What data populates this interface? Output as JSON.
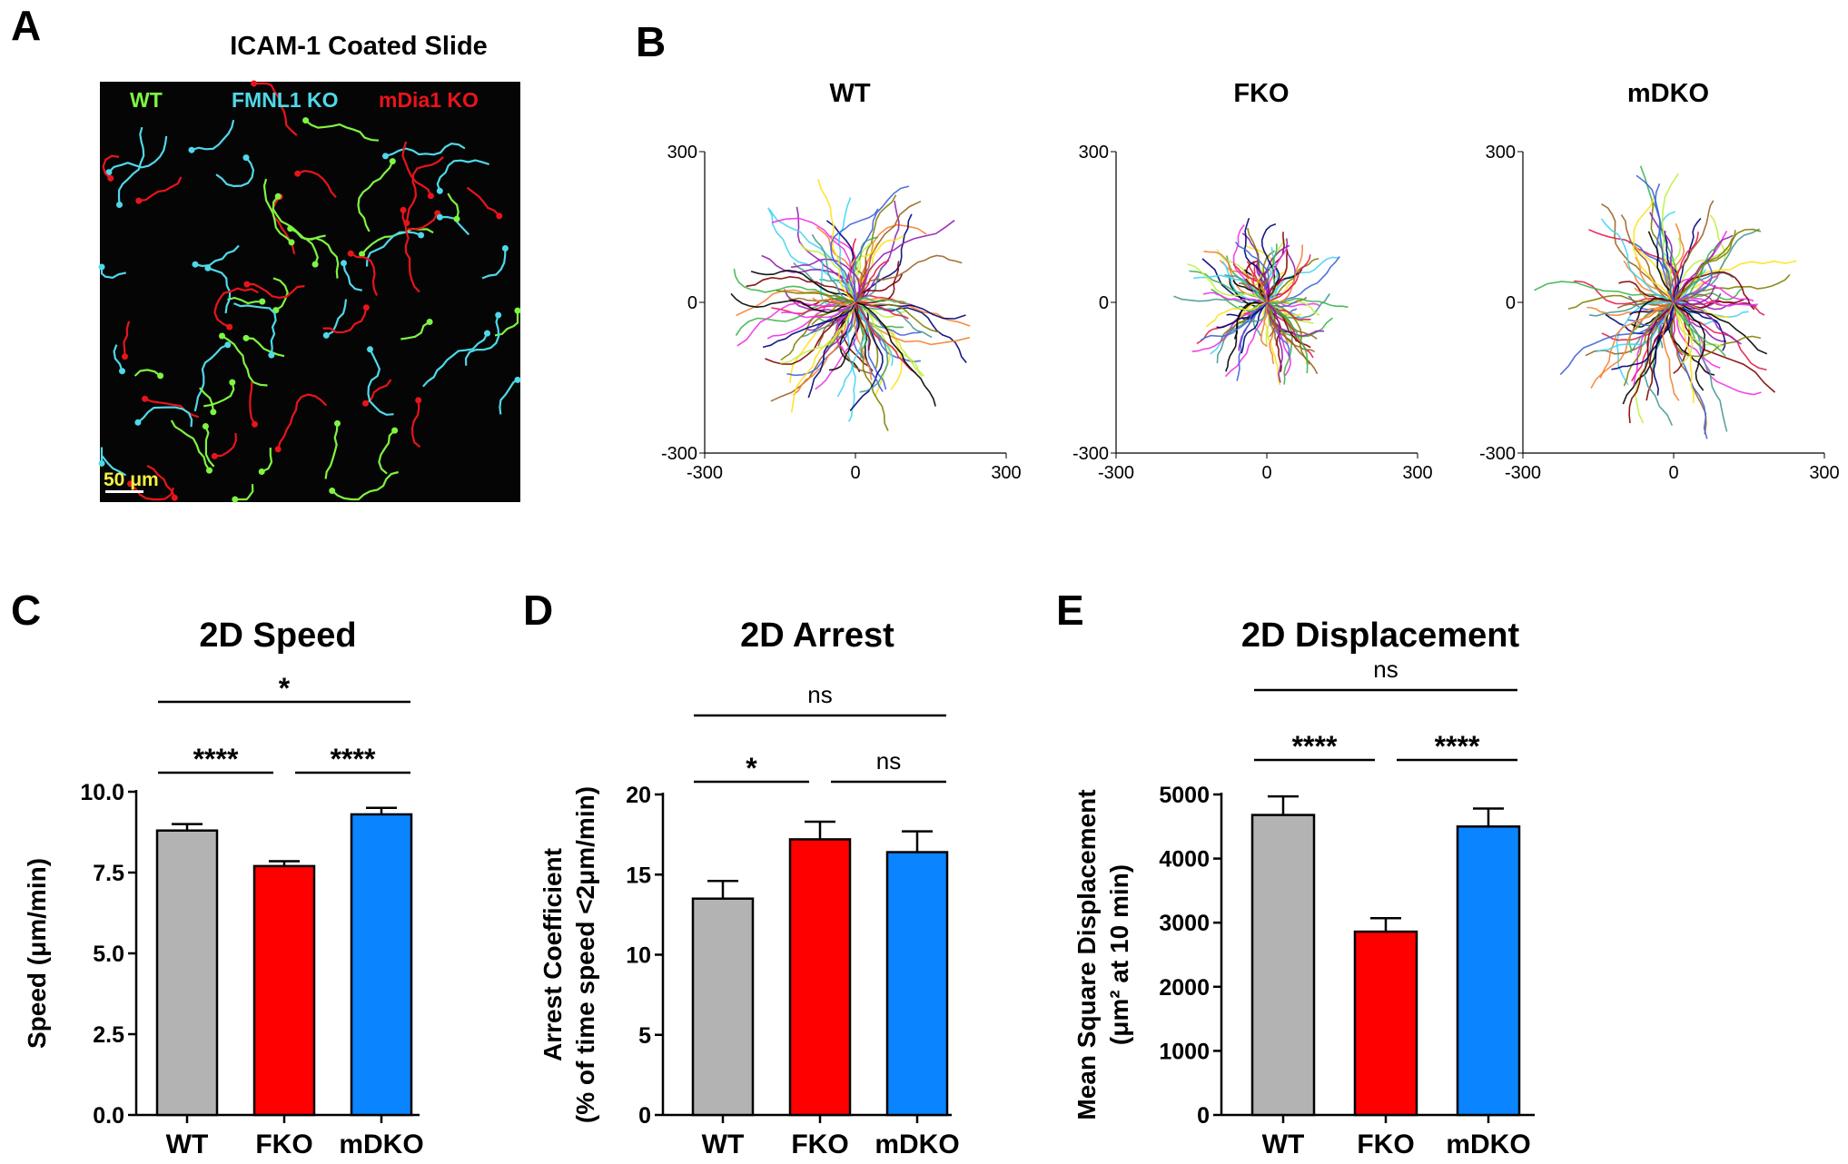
{
  "figure": {
    "panel_a": {
      "letter": "A",
      "title": "ICAM-1 Coated Slide",
      "legend": [
        {
          "label": "WT",
          "color": "#7ef542"
        },
        {
          "label": "FMNL1 KO",
          "color": "#4fd8e8"
        },
        {
          "label": "mDia1 KO",
          "color": "#e8141a"
        }
      ],
      "scale_bar_label": "50 μm"
    },
    "panel_b": {
      "letter": "B"
    }
  },
  "chart_data": [
    {
      "id": "B",
      "type": "line",
      "description": "cell track rose plots",
      "plots": [
        {
          "title": "WT"
        },
        {
          "title": "FKO"
        },
        {
          "title": "mDKO"
        }
      ],
      "xlim": [
        -300,
        300
      ],
      "ylim": [
        -300,
        300
      ],
      "xticks": [
        "-300",
        "0",
        "300"
      ],
      "yticks": [
        "300",
        "0",
        "-300"
      ]
    },
    {
      "id": "C",
      "letter": "C",
      "type": "bar",
      "title": "2D Speed",
      "ylabel": [
        "Speed (μm/min)"
      ],
      "categories": [
        "WT",
        "FKO",
        "mDKO"
      ],
      "values": [
        8.8,
        7.7,
        9.3
      ],
      "errors": [
        0.2,
        0.15,
        0.2
      ],
      "colors": [
        "#b3b3b3",
        "#ff0000",
        "#0a84ff"
      ],
      "ylim": [
        0,
        10
      ],
      "yticks": [
        0,
        2.5,
        5,
        7.5,
        10
      ],
      "ytick_labels": [
        "0.0",
        "2.5",
        "5.0",
        "7.5",
        "10.0"
      ],
      "comparisons": [
        {
          "from": 0,
          "to": 1,
          "label": "****",
          "level": 0
        },
        {
          "from": 1,
          "to": 2,
          "label": "****",
          "level": 0
        },
        {
          "from": 0,
          "to": 2,
          "label": "*",
          "level": 1
        }
      ]
    },
    {
      "id": "D",
      "letter": "D",
      "type": "bar",
      "title": "2D Arrest",
      "ylabel": [
        "Arrest Coefficient",
        "(% of time speed <2μm/min)"
      ],
      "categories": [
        "WT",
        "FKO",
        "mDKO"
      ],
      "values": [
        13.5,
        17.2,
        16.4
      ],
      "errors": [
        1.1,
        1.1,
        1.3
      ],
      "colors": [
        "#b3b3b3",
        "#ff0000",
        "#0a84ff"
      ],
      "ylim": [
        0,
        20
      ],
      "yticks": [
        0,
        5,
        10,
        15,
        20
      ],
      "ytick_labels": [
        "0",
        "5",
        "10",
        "15",
        "20"
      ],
      "comparisons": [
        {
          "from": 0,
          "to": 1,
          "label": "*",
          "level": 0
        },
        {
          "from": 1,
          "to": 2,
          "label": "ns",
          "level": 0
        },
        {
          "from": 0,
          "to": 2,
          "label": "ns",
          "level": 1
        }
      ]
    },
    {
      "id": "E",
      "letter": "E",
      "type": "bar",
      "title": "2D Displacement",
      "ylabel": [
        "Mean Square Displacement",
        "(μm² at 10 min)"
      ],
      "categories": [
        "WT",
        "FKO",
        "mDKO"
      ],
      "values": [
        4680,
        2860,
        4500
      ],
      "errors": [
        290,
        210,
        280
      ],
      "colors": [
        "#b3b3b3",
        "#ff0000",
        "#0a84ff"
      ],
      "ylim": [
        0,
        5000
      ],
      "yticks": [
        0,
        1000,
        2000,
        3000,
        4000,
        5000
      ],
      "ytick_labels": [
        "0",
        "1000",
        "2000",
        "3000",
        "4000",
        "5000"
      ],
      "comparisons": [
        {
          "from": 0,
          "to": 1,
          "label": "****",
          "level": 0
        },
        {
          "from": 1,
          "to": 2,
          "label": "****",
          "level": 0
        },
        {
          "from": 0,
          "to": 2,
          "label": "ns",
          "level": 1
        }
      ]
    }
  ]
}
